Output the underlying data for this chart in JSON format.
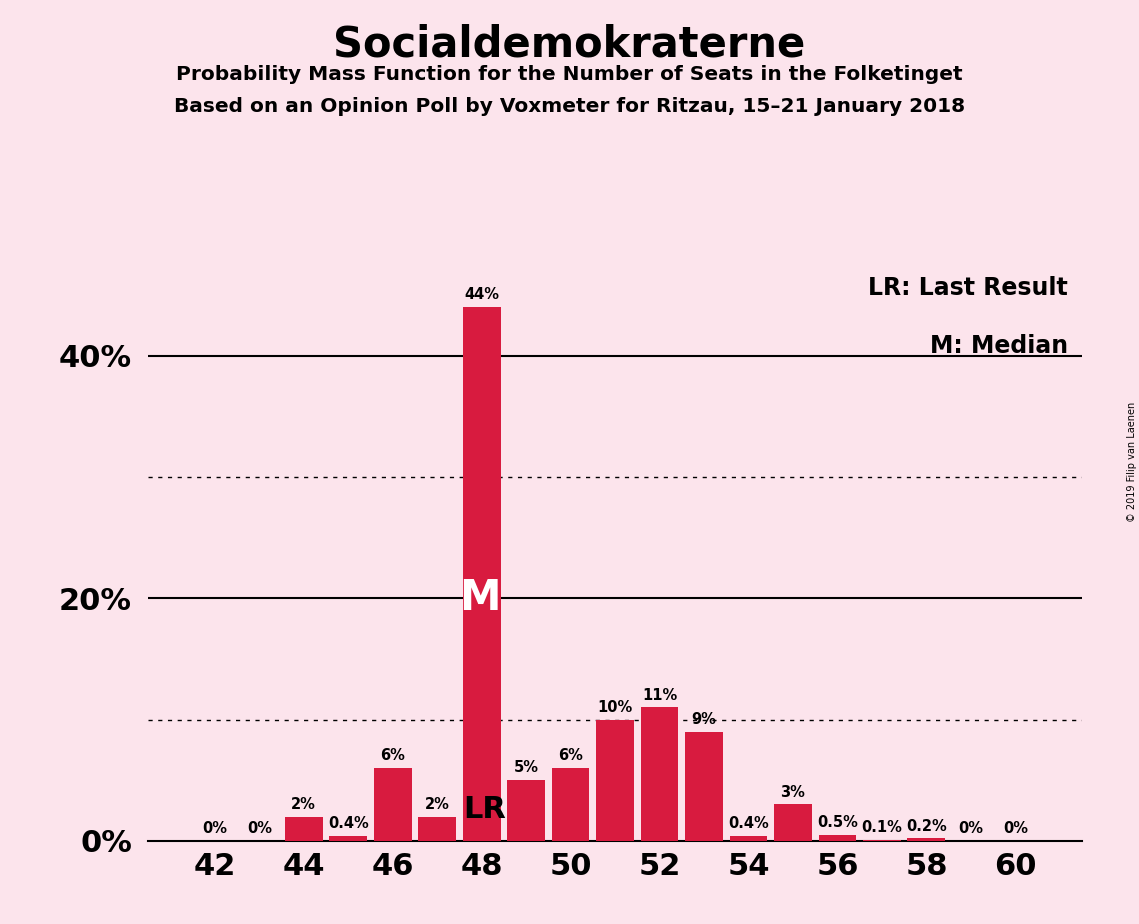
{
  "title": "Socialdemokraterne",
  "subtitle1": "Probability Mass Function for the Number of Seats in the Folketinget",
  "subtitle2": "Based on an Opinion Poll by Voxmeter for Ritzau, 15–21 January 2018",
  "watermark": "© 2019 Filip van Laenen",
  "legend_lr": "LR: Last Result",
  "legend_m": "M: Median",
  "seats": [
    42,
    43,
    44,
    45,
    46,
    47,
    48,
    49,
    50,
    51,
    52,
    53,
    54,
    55,
    56,
    57,
    58,
    59,
    60
  ],
  "probabilities": [
    0.0,
    0.0,
    2.0,
    0.4,
    6.0,
    2.0,
    44.0,
    5.0,
    6.0,
    10.0,
    11.0,
    9.0,
    0.4,
    3.0,
    0.5,
    0.1,
    0.2,
    0.0,
    0.0
  ],
  "bar_color": "#d81b3f",
  "background_color": "#fce4ec",
  "median_seat": 48,
  "lr_seat": 47,
  "ylim_top": 48,
  "ytick_positions": [
    0,
    20,
    40
  ],
  "ytick_labels": [
    "0%",
    "20%",
    "40%"
  ],
  "dotted_lines": [
    10,
    30
  ],
  "solid_lines": [
    20,
    40
  ],
  "xtick_positions": [
    42,
    44,
    46,
    48,
    50,
    52,
    54,
    56,
    58,
    60
  ]
}
